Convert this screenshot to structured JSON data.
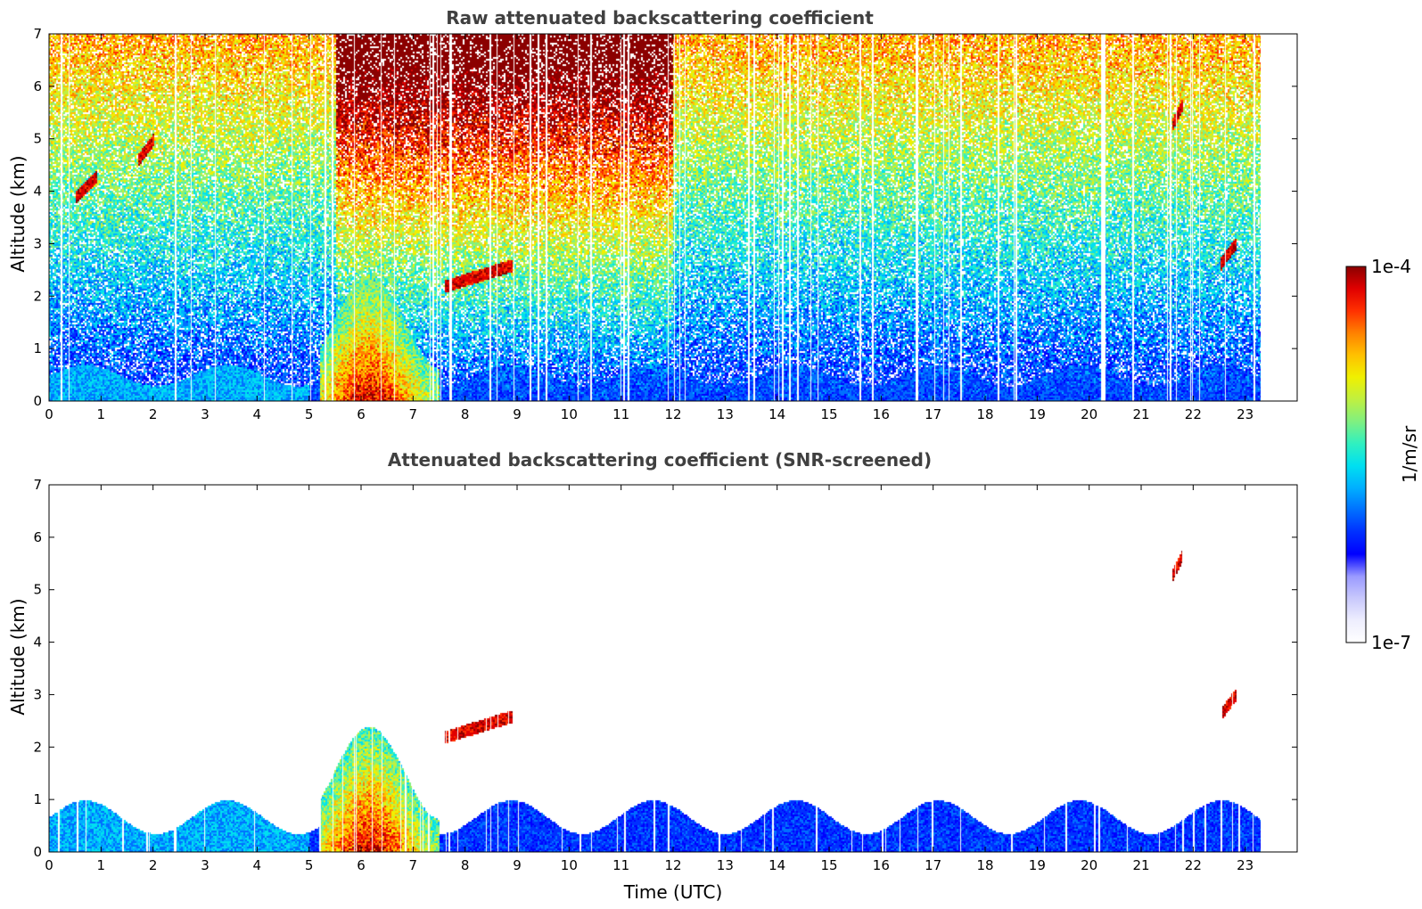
{
  "colormap": [
    "#ffffff",
    "#eeeefe",
    "#c8c8fc",
    "#9a9aff",
    "#0000ff",
    "#0030ff",
    "#0070ff",
    "#00b0ff",
    "#00e0f0",
    "#30f0c0",
    "#80f080",
    "#c0f040",
    "#f0f000",
    "#ffc000",
    "#ff8000",
    "#ff3000",
    "#e00000",
    "#8b0000"
  ],
  "colorbar": {
    "max_label": "1e-4",
    "min_label": "1e-7",
    "unit_label": "1/m/sr",
    "vmin": 1e-07,
    "vmax": 0.0001,
    "scale": "log"
  },
  "chart_data": [
    {
      "type": "heatmap",
      "title": "Raw attenuated backscattering coefficient",
      "xlabel": "",
      "ylabel": "Altitude (km)",
      "xlim": [
        0,
        24
      ],
      "ylim": [
        0,
        7
      ],
      "data_end_time": 23.3,
      "xticks": [
        "0",
        "1",
        "2",
        "3",
        "4",
        "5",
        "6",
        "7",
        "8",
        "9",
        "10",
        "11",
        "12",
        "13",
        "14",
        "15",
        "16",
        "17",
        "18",
        "19",
        "20",
        "21",
        "22",
        "23"
      ],
      "yticks": [
        "0",
        "1",
        "2",
        "3",
        "4",
        "5",
        "6",
        "7"
      ],
      "screened": false,
      "features": [
        {
          "name": "boundary-layer",
          "t_start": 0,
          "t_end": 23.3,
          "top_km": 0.5
        },
        {
          "name": "aerosol-plume",
          "t_start": 5.2,
          "t_end": 7.5,
          "top_km": 2.2
        },
        {
          "name": "cloud-layer",
          "t_start": 7.6,
          "t_end": 8.9,
          "alt_km": 2.2
        },
        {
          "name": "cloud-patch",
          "t_start": 0.5,
          "t_end": 0.9,
          "alt_km": 3.9
        },
        {
          "name": "cloud-patch",
          "t_start": 1.7,
          "t_end": 2.0,
          "alt_km": 4.6
        },
        {
          "name": "cloud-patch",
          "t_start": 21.6,
          "t_end": 21.8,
          "alt_km": 5.3
        },
        {
          "name": "cloud-patch",
          "t_start": 22.5,
          "t_end": 22.8,
          "alt_km": 2.6
        }
      ]
    },
    {
      "type": "heatmap",
      "title": "Attenuated backscattering coefficient (SNR-screened)",
      "xlabel": "Time (UTC)",
      "ylabel": "Altitude (km)",
      "xlim": [
        0,
        24
      ],
      "ylim": [
        0,
        7
      ],
      "data_end_time": 23.3,
      "xticks": [
        "0",
        "1",
        "2",
        "3",
        "4",
        "5",
        "6",
        "7",
        "8",
        "9",
        "10",
        "11",
        "12",
        "13",
        "14",
        "15",
        "16",
        "17",
        "18",
        "19",
        "20",
        "21",
        "22",
        "23"
      ],
      "yticks": [
        "0",
        "1",
        "2",
        "3",
        "4",
        "5",
        "6",
        "7"
      ],
      "screened": true,
      "features": [
        {
          "name": "boundary-layer",
          "t_start": 0,
          "t_end": 23.3,
          "top_km": 0.8
        },
        {
          "name": "aerosol-plume",
          "t_start": 5.2,
          "t_end": 7.5,
          "top_km": 2.2
        },
        {
          "name": "cloud-layer",
          "t_start": 7.6,
          "t_end": 8.9,
          "alt_km": 2.2
        },
        {
          "name": "cloud-patch",
          "t_start": 21.6,
          "t_end": 21.8,
          "alt_km": 5.3
        },
        {
          "name": "cloud-patch",
          "t_start": 22.5,
          "t_end": 22.8,
          "alt_km": 2.6
        }
      ]
    }
  ]
}
